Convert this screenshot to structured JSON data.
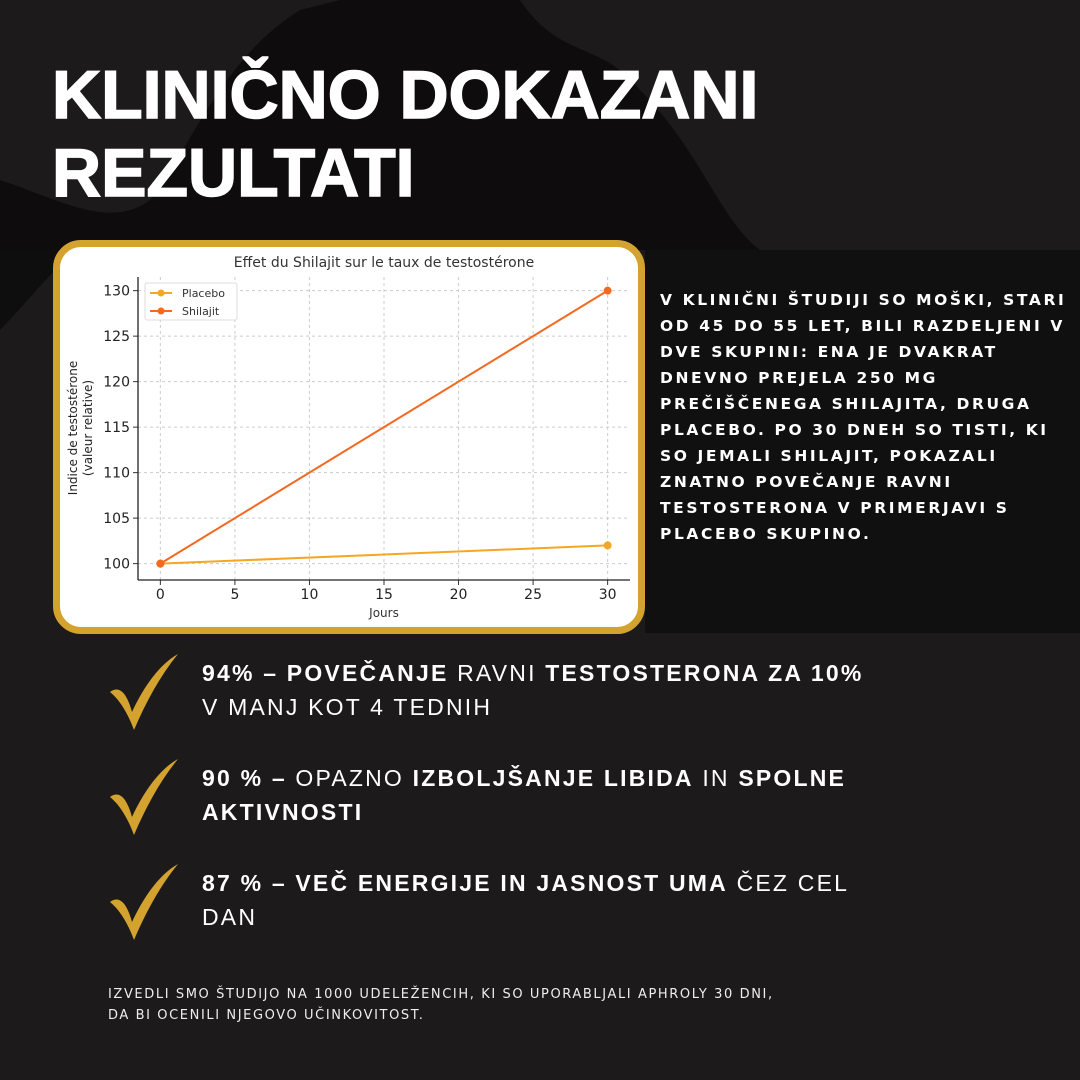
{
  "title": {
    "line1": "KLINIČNO DOKAZANI",
    "line2": "REZULTATI"
  },
  "study_text": "V kliničnI študiji so moški, stari od 45 do 55 let, bili razdeljeni v dve skupini: ena je dvakrat dnevno prejela 250 mg prečiščenega shilajita, druga placebo. Po 30 dneh so tisti, ki so jemali shilajit, pokazali znatno povečanje ravni testosterona v primerjavi s placebo skupino.",
  "bullets": [
    {
      "icon": "checkmark-icon",
      "s1": "94% – POVEČANJE",
      "s2": " RAVNI ",
      "s3": "TESTOSTERONA ZA 10%",
      "s4": " V MANJ KOT 4 TEDNIH"
    },
    {
      "icon": "checkmark-icon",
      "s1": "90 % –",
      "s2": " OPAZNO ",
      "s3": "IZBOLJŠANJE LIBIDA",
      "s4": " IN ",
      "s5": "SPOLNE AKTIVNOSTI"
    },
    {
      "icon": "checkmark-icon",
      "s1": "87 % – VEČ ENERGIJE IN JASNOST UMA",
      "s2": " ČEZ CEL DAN"
    }
  ],
  "footnote": {
    "line1": "IZVEDLI SMO ŠTUDIJO NA 1000 UDELEŽENCIH, KI SO UPORABLJALI APHROLY 30 DNI,",
    "line2": "DA BI OCENILI NJEGOVO UČINKOVITOST."
  },
  "colors": {
    "background": "#1c1a1b",
    "accent_gold": "#d4a22f",
    "placebo": "#f5a623",
    "shilajit": "#f26a21"
  },
  "chart_data": {
    "type": "line",
    "title": "Effet du Shilajit sur le taux de testostérone",
    "xlabel": "Jours",
    "ylabel": [
      "Indice de testostérone",
      "(valeur relative)"
    ],
    "x": [
      0,
      30
    ],
    "xticks": [
      0,
      5,
      10,
      15,
      20,
      25,
      30
    ],
    "yticks": [
      100,
      105,
      110,
      115,
      120,
      125,
      130
    ],
    "xlim": [
      -1.5,
      31.5
    ],
    "ylim": [
      98.2,
      131.5
    ],
    "grid": true,
    "legend": "top-left",
    "series": [
      {
        "name": "Placebo",
        "values": [
          100,
          102
        ],
        "color": "#f5a623"
      },
      {
        "name": "Shilajit",
        "values": [
          100,
          130
        ],
        "color": "#f26a21"
      }
    ]
  }
}
